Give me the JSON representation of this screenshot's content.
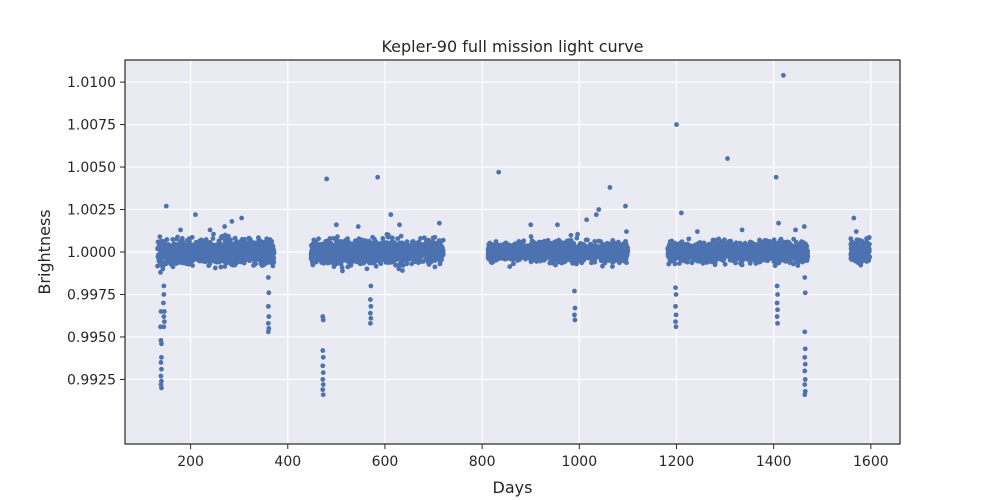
{
  "chart_data": {
    "type": "scatter",
    "title": "Kepler-90 full mission light curve",
    "xlabel": "Days",
    "ylabel": "Brightness",
    "xlim": [
      65,
      1660
    ],
    "ylim": [
      0.9887,
      1.0113
    ],
    "xticks": [
      200,
      400,
      600,
      800,
      1000,
      1200,
      1400,
      1600
    ],
    "yticks": [
      0.9925,
      0.995,
      0.9975,
      1.0,
      1.0025,
      1.005,
      1.0075,
      1.01
    ],
    "ytick_labels": [
      "0.9925",
      "0.9950",
      "0.9975",
      "1.0000",
      "1.0025",
      "1.0050",
      "1.0075",
      "1.0100"
    ],
    "grid": true,
    "background_color": "#EAEAF2",
    "point_color": "#4C72B0",
    "segments": [
      {
        "x_start": 132,
        "x_end": 372,
        "center": 1.0,
        "spread": 0.0006
      },
      {
        "x_start": 448,
        "x_end": 720,
        "center": 1.0,
        "spread": 0.0006
      },
      {
        "x_start": 812,
        "x_end": 1100,
        "center": 1.0,
        "spread": 0.0005
      },
      {
        "x_start": 1182,
        "x_end": 1470,
        "center": 1.0,
        "spread": 0.0005
      },
      {
        "x_start": 1558,
        "x_end": 1598,
        "center": 1.0,
        "spread": 0.0006
      }
    ],
    "transit_points": [
      {
        "x": 138,
        "y": 0.9988
      },
      {
        "x": 139,
        "y": 0.9965
      },
      {
        "x": 138,
        "y": 0.9956
      },
      {
        "x": 139,
        "y": 0.9948
      },
      {
        "x": 140,
        "y": 0.9946
      },
      {
        "x": 140,
        "y": 0.9938
      },
      {
        "x": 139,
        "y": 0.9935
      },
      {
        "x": 140,
        "y": 0.9931
      },
      {
        "x": 139,
        "y": 0.9927
      },
      {
        "x": 140,
        "y": 0.9924
      },
      {
        "x": 139,
        "y": 0.9922
      },
      {
        "x": 140,
        "y": 0.992
      },
      {
        "x": 145,
        "y": 0.998
      },
      {
        "x": 145,
        "y": 0.9975
      },
      {
        "x": 144,
        "y": 0.997
      },
      {
        "x": 146,
        "y": 0.9965
      },
      {
        "x": 145,
        "y": 0.9962
      },
      {
        "x": 146,
        "y": 0.9959
      },
      {
        "x": 145,
        "y": 0.9956
      },
      {
        "x": 360,
        "y": 0.9985
      },
      {
        "x": 361,
        "y": 0.9976
      },
      {
        "x": 360,
        "y": 0.9968
      },
      {
        "x": 361,
        "y": 0.9962
      },
      {
        "x": 360,
        "y": 0.9958
      },
      {
        "x": 361,
        "y": 0.9955
      },
      {
        "x": 360,
        "y": 0.9953
      },
      {
        "x": 472,
        "y": 0.9962
      },
      {
        "x": 473,
        "y": 0.996
      },
      {
        "x": 472,
        "y": 0.9942
      },
      {
        "x": 473,
        "y": 0.9938
      },
      {
        "x": 472,
        "y": 0.9933
      },
      {
        "x": 473,
        "y": 0.9929
      },
      {
        "x": 472,
        "y": 0.9925
      },
      {
        "x": 473,
        "y": 0.9922
      },
      {
        "x": 472,
        "y": 0.9919
      },
      {
        "x": 473,
        "y": 0.9916
      },
      {
        "x": 571,
        "y": 0.998
      },
      {
        "x": 570,
        "y": 0.9972
      },
      {
        "x": 571,
        "y": 0.9968
      },
      {
        "x": 570,
        "y": 0.9964
      },
      {
        "x": 571,
        "y": 0.9961
      },
      {
        "x": 570,
        "y": 0.9958
      },
      {
        "x": 990,
        "y": 0.9977
      },
      {
        "x": 991,
        "y": 0.9967
      },
      {
        "x": 990,
        "y": 0.9963
      },
      {
        "x": 991,
        "y": 0.996
      },
      {
        "x": 1198,
        "y": 0.9979
      },
      {
        "x": 1199,
        "y": 0.9975
      },
      {
        "x": 1198,
        "y": 0.9968
      },
      {
        "x": 1199,
        "y": 0.9963
      },
      {
        "x": 1198,
        "y": 0.9959
      },
      {
        "x": 1199,
        "y": 0.9956
      },
      {
        "x": 1407,
        "y": 0.998
      },
      {
        "x": 1408,
        "y": 0.9975
      },
      {
        "x": 1407,
        "y": 0.997
      },
      {
        "x": 1408,
        "y": 0.9966
      },
      {
        "x": 1407,
        "y": 0.9962
      },
      {
        "x": 1408,
        "y": 0.9958
      },
      {
        "x": 1464,
        "y": 0.9985
      },
      {
        "x": 1465,
        "y": 0.9976
      },
      {
        "x": 1464,
        "y": 0.9953
      },
      {
        "x": 1465,
        "y": 0.9943
      },
      {
        "x": 1464,
        "y": 0.9938
      },
      {
        "x": 1465,
        "y": 0.9934
      },
      {
        "x": 1464,
        "y": 0.993
      },
      {
        "x": 1465,
        "y": 0.9925
      },
      {
        "x": 1464,
        "y": 0.9922
      },
      {
        "x": 1465,
        "y": 0.9918
      },
      {
        "x": 1464,
        "y": 0.9916
      }
    ],
    "outlier_points": [
      {
        "x": 150,
        "y": 1.0027
      },
      {
        "x": 210,
        "y": 1.0022
      },
      {
        "x": 285,
        "y": 1.0018
      },
      {
        "x": 305,
        "y": 1.002
      },
      {
        "x": 270,
        "y": 1.0015
      },
      {
        "x": 240,
        "y": 1.0013
      },
      {
        "x": 480,
        "y": 1.0043
      },
      {
        "x": 500,
        "y": 1.0016
      },
      {
        "x": 585,
        "y": 1.0044
      },
      {
        "x": 612,
        "y": 1.0022
      },
      {
        "x": 630,
        "y": 1.0016
      },
      {
        "x": 712,
        "y": 1.0017
      },
      {
        "x": 545,
        "y": 1.0015
      },
      {
        "x": 834,
        "y": 1.0047
      },
      {
        "x": 900,
        "y": 1.0016
      },
      {
        "x": 955,
        "y": 1.0016
      },
      {
        "x": 1015,
        "y": 1.0019
      },
      {
        "x": 1035,
        "y": 1.0022
      },
      {
        "x": 1040,
        "y": 1.0025
      },
      {
        "x": 1063,
        "y": 1.0038
      },
      {
        "x": 1095,
        "y": 1.0027
      },
      {
        "x": 1097,
        "y": 1.0012
      },
      {
        "x": 1200,
        "y": 1.0075
      },
      {
        "x": 1210,
        "y": 1.0023
      },
      {
        "x": 1243,
        "y": 1.0012
      },
      {
        "x": 1305,
        "y": 1.0055
      },
      {
        "x": 1335,
        "y": 1.0013
      },
      {
        "x": 1405,
        "y": 1.0044
      },
      {
        "x": 1420,
        "y": 1.0104
      },
      {
        "x": 1410,
        "y": 1.0017
      },
      {
        "x": 1463,
        "y": 1.0015
      },
      {
        "x": 1445,
        "y": 1.0013
      },
      {
        "x": 1565,
        "y": 1.002
      },
      {
        "x": 1570,
        "y": 1.0012
      }
    ]
  }
}
